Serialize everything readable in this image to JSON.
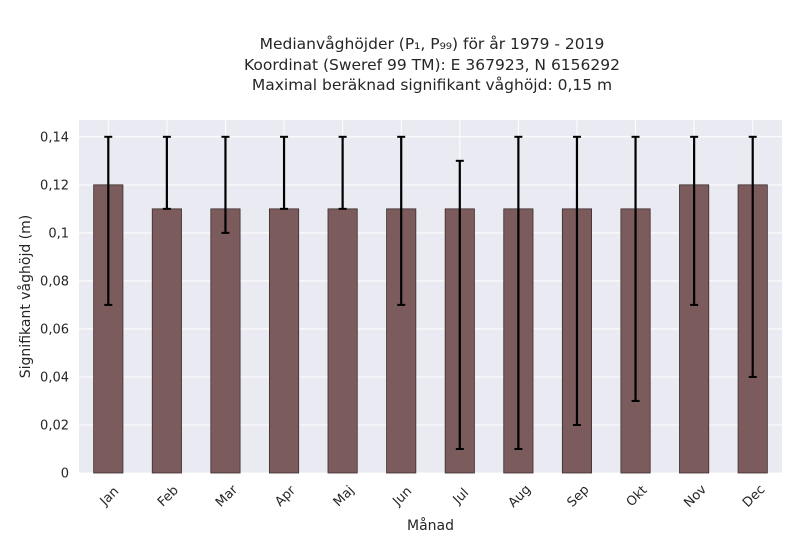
{
  "chart_data": {
    "type": "bar",
    "title_lines": [
      "Medianvåghöjder (P₁, P₉₉) för år 1979 - 2019",
      "Koordinat (Sweref 99 TM): E 367923, N 6156292",
      "Maximal beräknad signifikant våghöjd: 0,15 m"
    ],
    "xlabel": "Månad",
    "ylabel": "Signifikant våghöjd (m)",
    "categories": [
      "Jan",
      "Feb",
      "Mar",
      "Apr",
      "Maj",
      "Jun",
      "Jul",
      "Aug",
      "Sep",
      "Okt",
      "Nov",
      "Dec"
    ],
    "values": [
      0.12,
      0.11,
      0.11,
      0.11,
      0.11,
      0.11,
      0.11,
      0.11,
      0.11,
      0.11,
      0.12,
      0.12
    ],
    "err_low": [
      0.07,
      0.11,
      0.1,
      0.11,
      0.11,
      0.07,
      0.01,
      0.01,
      0.02,
      0.03,
      0.07,
      0.04
    ],
    "err_high": [
      0.14,
      0.14,
      0.14,
      0.14,
      0.14,
      0.14,
      0.13,
      0.14,
      0.14,
      0.14,
      0.14,
      0.14
    ],
    "yticks": [
      0,
      0.02,
      0.04,
      0.06,
      0.08,
      0.1,
      0.12,
      0.14
    ],
    "ytick_labels": [
      "0",
      "0,02",
      "0,04",
      "0,06",
      "0,08",
      "0,1",
      "0,12",
      "0,14"
    ],
    "ylim": [
      0,
      0.147
    ],
    "grid": true,
    "legend": "none",
    "colors": {
      "bar": "#7b5b5b",
      "bar_edge": "#3c2e2e",
      "errorbar": "#000000",
      "plot_bg": "#eaeaf2",
      "grid": "#ffffff"
    }
  }
}
